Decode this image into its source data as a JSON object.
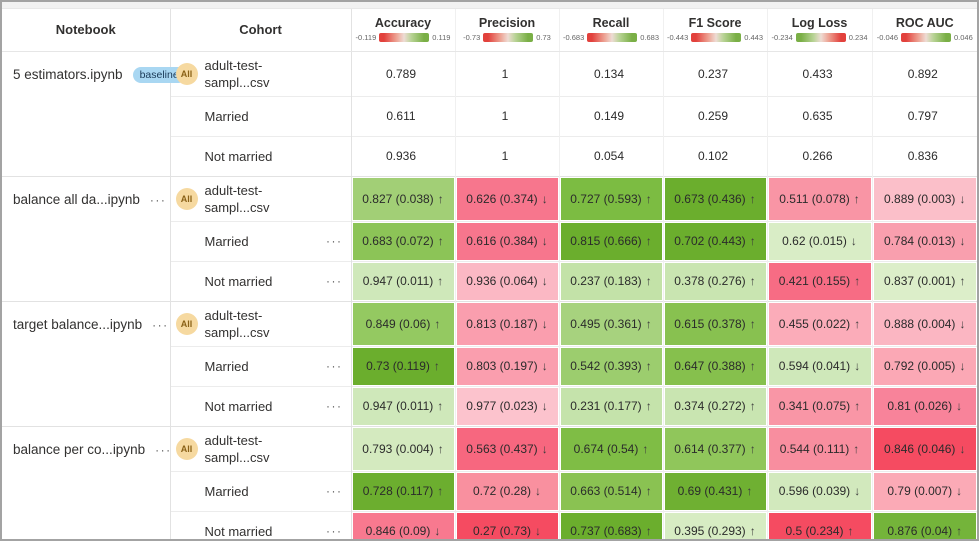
{
  "table": {
    "notebook_header": "Notebook",
    "cohort_header": "Cohort",
    "badges": {
      "baseline": "baseline",
      "all": "All",
      "menu": "···"
    },
    "metrics": [
      {
        "name": "Accuracy",
        "min": "-0.119",
        "max": "0.119",
        "reversed": false
      },
      {
        "name": "Precision",
        "min": "-0.73",
        "max": "0.73",
        "reversed": false
      },
      {
        "name": "Recall",
        "min": "-0.683",
        "max": "0.683",
        "reversed": false
      },
      {
        "name": "F1 Score",
        "min": "-0.443",
        "max": "0.443",
        "reversed": false
      },
      {
        "name": "Log Loss",
        "min": "-0.234",
        "max": "0.234",
        "reversed": true
      },
      {
        "name": "ROC AUC",
        "min": "-0.046",
        "max": "0.046",
        "reversed": false
      }
    ],
    "groups": [
      {
        "notebook": "5 estimators.ipynb",
        "baseline": true,
        "menu": false,
        "rows": [
          {
            "cohort": "adult-test-\nsampl...csv",
            "all": true,
            "menu": false,
            "cells": [
              {
                "label": "0.789",
                "arrow": "",
                "bg": ""
              },
              {
                "label": "1",
                "arrow": "",
                "bg": ""
              },
              {
                "label": "0.134",
                "arrow": "",
                "bg": ""
              },
              {
                "label": "0.237",
                "arrow": "",
                "bg": ""
              },
              {
                "label": "0.433",
                "arrow": "",
                "bg": ""
              },
              {
                "label": "0.892",
                "arrow": "",
                "bg": ""
              }
            ]
          },
          {
            "cohort": "Married",
            "all": false,
            "menu": false,
            "cells": [
              {
                "label": "0.611",
                "arrow": "",
                "bg": ""
              },
              {
                "label": "1",
                "arrow": "",
                "bg": ""
              },
              {
                "label": "0.149",
                "arrow": "",
                "bg": ""
              },
              {
                "label": "0.259",
                "arrow": "",
                "bg": ""
              },
              {
                "label": "0.635",
                "arrow": "",
                "bg": ""
              },
              {
                "label": "0.797",
                "arrow": "",
                "bg": ""
              }
            ]
          },
          {
            "cohort": "Not married",
            "all": false,
            "menu": false,
            "cells": [
              {
                "label": "0.936",
                "arrow": "",
                "bg": ""
              },
              {
                "label": "1",
                "arrow": "",
                "bg": ""
              },
              {
                "label": "0.054",
                "arrow": "",
                "bg": ""
              },
              {
                "label": "0.102",
                "arrow": "",
                "bg": ""
              },
              {
                "label": "0.266",
                "arrow": "",
                "bg": ""
              },
              {
                "label": "0.836",
                "arrow": "",
                "bg": ""
              }
            ]
          }
        ]
      },
      {
        "notebook": "balance all da...ipynb",
        "baseline": false,
        "menu": true,
        "rows": [
          {
            "cohort": "adult-test-\nsampl...csv",
            "all": true,
            "menu": false,
            "cells": [
              {
                "label": "0.827 (0.038)",
                "arrow": "↑",
                "bg": "#a2cf76"
              },
              {
                "label": "0.626 (0.374)",
                "arrow": "↓",
                "bg": "#f7768d"
              },
              {
                "label": "0.727 (0.593)",
                "arrow": "↑",
                "bg": "#7cbc42"
              },
              {
                "label": "0.673 (0.436)",
                "arrow": "↑",
                "bg": "#6bae2d"
              },
              {
                "label": "0.511 (0.078)",
                "arrow": "↑",
                "bg": "#f995a5"
              },
              {
                "label": "0.889 (0.003)",
                "arrow": "↓",
                "bg": "#fbbfc9"
              }
            ]
          },
          {
            "cohort": "Married",
            "all": false,
            "menu": true,
            "cells": [
              {
                "label": "0.683 (0.072)",
                "arrow": "↑",
                "bg": "#8cc457"
              },
              {
                "label": "0.616 (0.384)",
                "arrow": "↓",
                "bg": "#f7768d"
              },
              {
                "label": "0.815 (0.666)",
                "arrow": "↑",
                "bg": "#6bae2d"
              },
              {
                "label": "0.702 (0.443)",
                "arrow": "↑",
                "bg": "#6bae2d"
              },
              {
                "label": "0.62 (0.015)",
                "arrow": "↓",
                "bg": "#d9edc6"
              },
              {
                "label": "0.784 (0.013)",
                "arrow": "↓",
                "bg": "#f99fae"
              }
            ]
          },
          {
            "cohort": "Not married",
            "all": false,
            "menu": true,
            "cells": [
              {
                "label": "0.947 (0.011)",
                "arrow": "↑",
                "bg": "#cfe8ba"
              },
              {
                "label": "0.936 (0.064)",
                "arrow": "↓",
                "bg": "#fbb8c4"
              },
              {
                "label": "0.237 (0.183)",
                "arrow": "↑",
                "bg": "#c3e2a8"
              },
              {
                "label": "0.378 (0.276)",
                "arrow": "↑",
                "bg": "#c9e5b1"
              },
              {
                "label": "0.421 (0.155)",
                "arrow": "↑",
                "bg": "#f76c84"
              },
              {
                "label": "0.837 (0.001)",
                "arrow": "↑",
                "bg": "#dceec9"
              }
            ]
          }
        ]
      },
      {
        "notebook": "target balance...ipynb",
        "baseline": false,
        "menu": true,
        "rows": [
          {
            "cohort": "adult-test-\nsampl...csv",
            "all": true,
            "menu": false,
            "cells": [
              {
                "label": "0.849 (0.06)",
                "arrow": "↑",
                "bg": "#94c961"
              },
              {
                "label": "0.813 (0.187)",
                "arrow": "↓",
                "bg": "#fa9eae"
              },
              {
                "label": "0.495 (0.361)",
                "arrow": "↑",
                "bg": "#a7d27e"
              },
              {
                "label": "0.615 (0.378)",
                "arrow": "↑",
                "bg": "#88c150"
              },
              {
                "label": "0.455 (0.022)",
                "arrow": "↑",
                "bg": "#fbacb9"
              },
              {
                "label": "0.888 (0.004)",
                "arrow": "↓",
                "bg": "#fbb6c2"
              }
            ]
          },
          {
            "cohort": "Married",
            "all": false,
            "menu": true,
            "cells": [
              {
                "label": "0.73 (0.119)",
                "arrow": "↑",
                "bg": "#6bae2d"
              },
              {
                "label": "0.803 (0.197)",
                "arrow": "↓",
                "bg": "#fa9eae"
              },
              {
                "label": "0.542 (0.393)",
                "arrow": "↑",
                "bg": "#9ccd6e"
              },
              {
                "label": "0.647 (0.388)",
                "arrow": "↑",
                "bg": "#86c04d"
              },
              {
                "label": "0.594 (0.041)",
                "arrow": "↓",
                "bg": "#cfe8ba"
              },
              {
                "label": "0.792 (0.005)",
                "arrow": "↓",
                "bg": "#fba8b5"
              }
            ]
          },
          {
            "cohort": "Not married",
            "all": false,
            "menu": true,
            "cells": [
              {
                "label": "0.947 (0.011)",
                "arrow": "↑",
                "bg": "#cfe8ba"
              },
              {
                "label": "0.977 (0.023)",
                "arrow": "↓",
                "bg": "#fcc3cd"
              },
              {
                "label": "0.231 (0.177)",
                "arrow": "↑",
                "bg": "#c5e3ab"
              },
              {
                "label": "0.374 (0.272)",
                "arrow": "↑",
                "bg": "#c9e5b1"
              },
              {
                "label": "0.341 (0.075)",
                "arrow": "↑",
                "bg": "#f996a6"
              },
              {
                "label": "0.81 (0.026)",
                "arrow": "↓",
                "bg": "#f8839a"
              }
            ]
          }
        ]
      },
      {
        "notebook": "balance per co...ipynb",
        "baseline": false,
        "menu": true,
        "rows": [
          {
            "cohort": "adult-test-\nsampl...csv",
            "all": true,
            "menu": false,
            "cells": [
              {
                "label": "0.793 (0.004)",
                "arrow": "↑",
                "bg": "#d4eabf"
              },
              {
                "label": "0.563 (0.437)",
                "arrow": "↓",
                "bg": "#f7677f"
              },
              {
                "label": "0.674 (0.54)",
                "arrow": "↑",
                "bg": "#7fbd45"
              },
              {
                "label": "0.614 (0.377)",
                "arrow": "↑",
                "bg": "#90c65b"
              },
              {
                "label": "0.544 (0.111)",
                "arrow": "↑",
                "bg": "#f88e9f"
              },
              {
                "label": "0.846 (0.046)",
                "arrow": "↓",
                "bg": "#f54b61"
              }
            ]
          },
          {
            "cohort": "Married",
            "all": false,
            "menu": true,
            "cells": [
              {
                "label": "0.728 (0.117)",
                "arrow": "↑",
                "bg": "#6cae2f"
              },
              {
                "label": "0.72 (0.28)",
                "arrow": "↓",
                "bg": "#f9909f"
              },
              {
                "label": "0.663 (0.514)",
                "arrow": "↑",
                "bg": "#8ac252"
              },
              {
                "label": "0.69 (0.431)",
                "arrow": "↑",
                "bg": "#6fb032"
              },
              {
                "label": "0.596 (0.039)",
                "arrow": "↓",
                "bg": "#d2e9bd"
              },
              {
                "label": "0.79 (0.007)",
                "arrow": "↓",
                "bg": "#fbaab6"
              }
            ]
          },
          {
            "cohort": "Not married",
            "all": false,
            "menu": true,
            "cells": [
              {
                "label": "0.846 (0.09)",
                "arrow": "↓",
                "bg": "#f8798f"
              },
              {
                "label": "0.27 (0.73)",
                "arrow": "↓",
                "bg": "#f54b61"
              },
              {
                "label": "0.737 (0.683)",
                "arrow": "↑",
                "bg": "#6bae2d"
              },
              {
                "label": "0.395 (0.293)",
                "arrow": "↑",
                "bg": "#d7ecc3"
              },
              {
                "label": "0.5 (0.234)",
                "arrow": "↑",
                "bg": "#f54b61"
              },
              {
                "label": "0.876 (0.04)",
                "arrow": "↑",
                "bg": "#74b43a"
              }
            ]
          }
        ]
      }
    ]
  }
}
